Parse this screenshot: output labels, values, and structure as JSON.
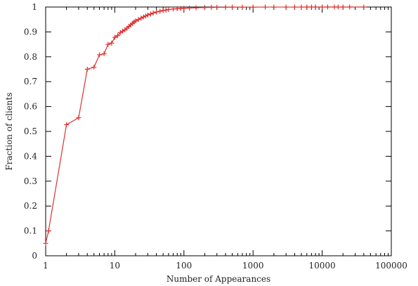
{
  "chart_data": {
    "type": "line",
    "title": "",
    "xlabel": "Number of Appearances",
    "ylabel": "Fraction of clients",
    "x_scale": "log",
    "xlim": [
      1,
      100000
    ],
    "ylim": [
      0,
      1
    ],
    "grid": false,
    "legend": "none",
    "x_tick_labels": [
      "1",
      "10",
      "100",
      "1000",
      "10000",
      "100000"
    ],
    "y_tick_labels": [
      "0",
      "0.1",
      "0.2",
      "0.3",
      "0.4",
      "0.5",
      "0.6",
      "0.7",
      "0.8",
      "0.9",
      "1"
    ],
    "series": [
      {
        "color": "#e03030",
        "marker": "plus",
        "x": [
          1,
          1.1,
          2,
          3,
          4,
          5,
          6,
          7,
          8,
          9,
          10,
          11,
          12,
          13,
          14,
          15,
          16,
          17,
          18,
          19,
          20,
          22,
          24,
          26,
          28,
          30,
          33,
          36,
          40,
          45,
          50,
          55,
          60,
          70,
          80,
          90,
          100,
          120,
          150,
          200,
          250,
          300,
          400,
          500,
          700,
          1000,
          1500,
          2000,
          3000,
          4000,
          5000,
          6000,
          7000,
          8000,
          10000,
          12000,
          15000,
          17000,
          20000,
          25000,
          40000
        ],
        "y": [
          0.05,
          0.1,
          0.527,
          0.555,
          0.75,
          0.758,
          0.808,
          0.812,
          0.85,
          0.855,
          0.878,
          0.885,
          0.897,
          0.903,
          0.908,
          0.915,
          0.922,
          0.928,
          0.934,
          0.94,
          0.944,
          0.95,
          0.955,
          0.96,
          0.964,
          0.968,
          0.972,
          0.976,
          0.98,
          0.983,
          0.986,
          0.988,
          0.99,
          0.992,
          0.993,
          0.994,
          0.995,
          0.996,
          0.997,
          0.998,
          0.9985,
          0.999,
          0.9992,
          0.9994,
          0.9996,
          0.9997,
          0.9998,
          0.9998,
          0.9999,
          0.9999,
          0.9999,
          1,
          1,
          1,
          1,
          1,
          1,
          1,
          1,
          1,
          1
        ]
      }
    ]
  }
}
